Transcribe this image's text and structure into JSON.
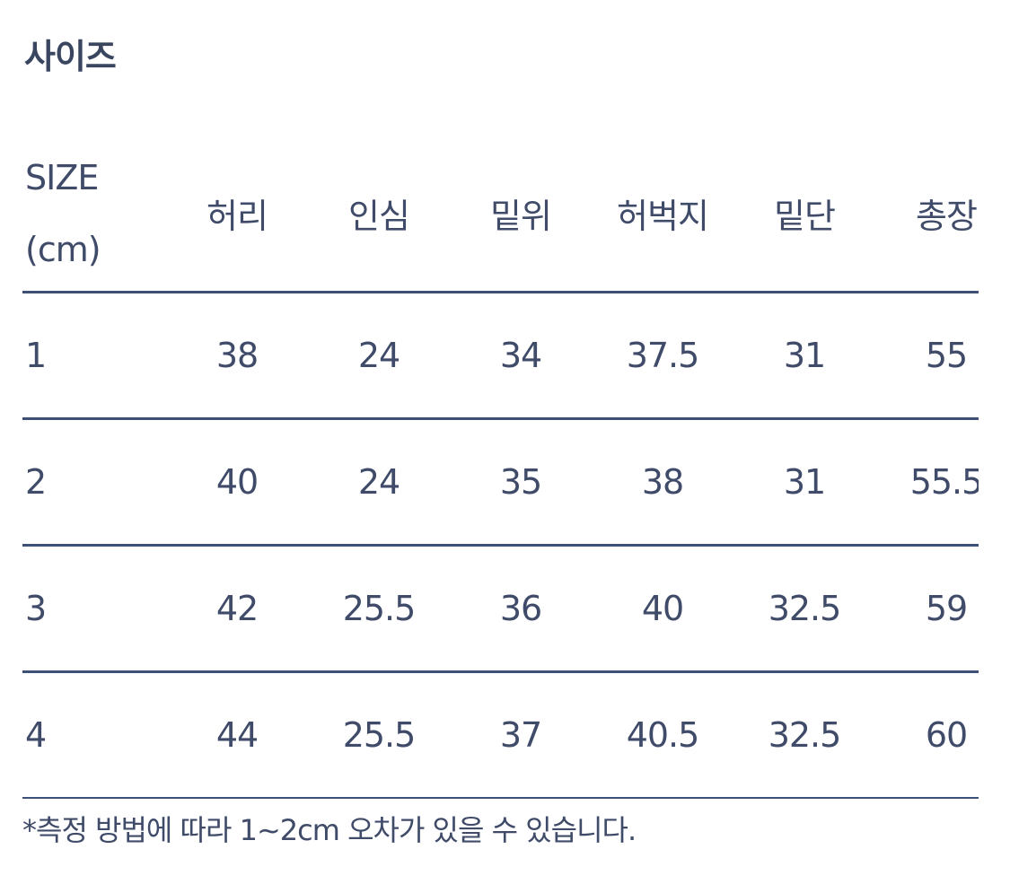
{
  "title": "사이즈",
  "table": {
    "size_label": "SIZE",
    "unit_label": "(cm)",
    "columns": [
      "허리",
      "인심",
      "밑위",
      "허벅지",
      "밑단",
      "총장"
    ],
    "rows": [
      {
        "size": "1",
        "values": [
          "38",
          "24",
          "34",
          "37.5",
          "31",
          "55"
        ]
      },
      {
        "size": "2",
        "values": [
          "40",
          "24",
          "35",
          "38",
          "31",
          "55.5"
        ]
      },
      {
        "size": "3",
        "values": [
          "42",
          "25.5",
          "36",
          "40",
          "32.5",
          "59"
        ]
      },
      {
        "size": "4",
        "values": [
          "44",
          "25.5",
          "37",
          "40.5",
          "32.5",
          "60"
        ]
      }
    ]
  },
  "note": "*측정 방법에 따라 1~2cm 오차가 있을 수 있습니다.",
  "colors": {
    "text": "#3f4b68",
    "rule": "#3d5078"
  }
}
